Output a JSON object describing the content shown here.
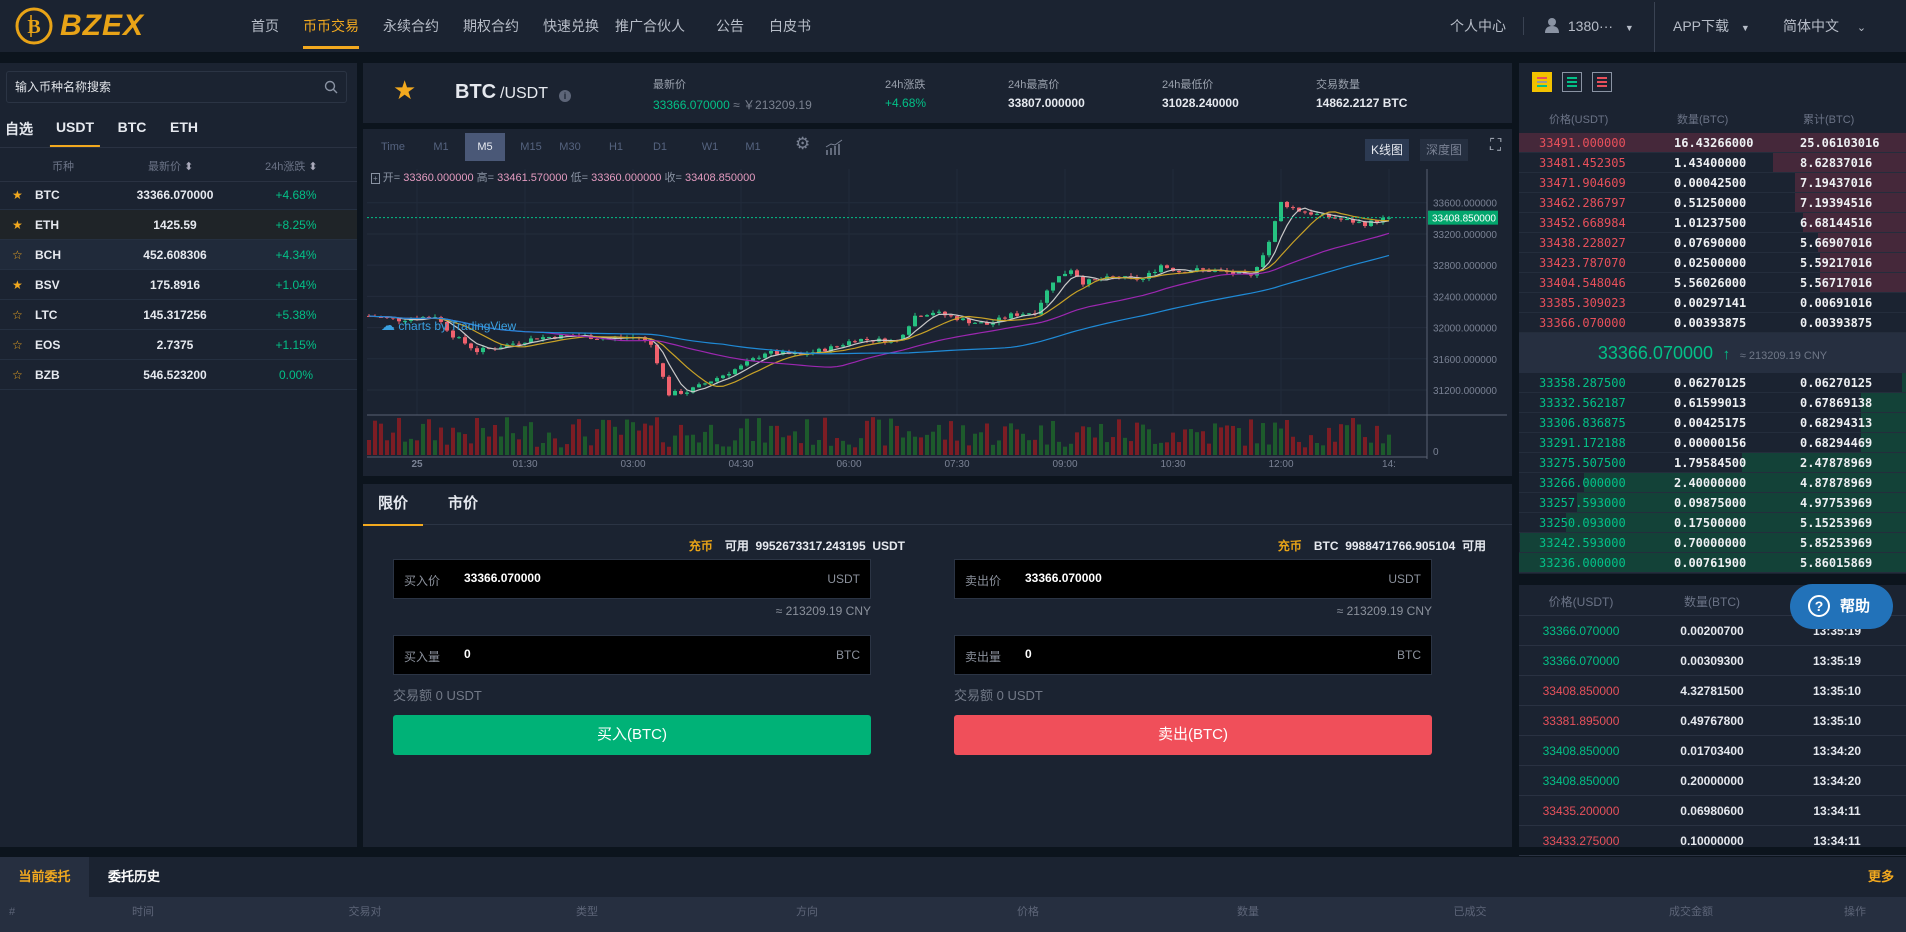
{
  "header": {
    "logo": "BZEX",
    "nav": [
      {
        "label": "首页",
        "active": false
      },
      {
        "label": "币币交易",
        "active": true
      },
      {
        "label": "永续合约",
        "active": false
      },
      {
        "label": "期权合约",
        "active": false
      },
      {
        "label": "快速兑换",
        "active": false
      },
      {
        "label": "推广合伙人",
        "active": false
      },
      {
        "label": "公告",
        "active": false
      },
      {
        "label": "白皮书",
        "active": false
      }
    ],
    "personal_center": "个人中心",
    "user": "1380···",
    "app_download": "APP下载",
    "language": "简体中文"
  },
  "market_list": {
    "search_placeholder": "输入币种名称搜索",
    "tabs": [
      {
        "label": "自选"
      },
      {
        "label": "USDT",
        "active": true
      },
      {
        "label": "BTC"
      },
      {
        "label": "ETH"
      }
    ],
    "columns": {
      "coin": "币种",
      "price": "最新价",
      "change": "24h涨跌"
    },
    "rows": [
      {
        "coin": "BTC",
        "price": "33366.070000",
        "change": "+4.68%",
        "favorite": true
      },
      {
        "coin": "ETH",
        "price": "1425.59",
        "change": "+8.25%",
        "favorite": true
      },
      {
        "coin": "BCH",
        "price": "452.608306",
        "change": "+4.34%",
        "favorite": false
      },
      {
        "coin": "BSV",
        "price": "175.8916",
        "change": "+1.04%",
        "favorite": true
      },
      {
        "coin": "LTC",
        "price": "145.317256",
        "change": "+5.38%",
        "favorite": false
      },
      {
        "coin": "EOS",
        "price": "2.7375",
        "change": "+1.15%",
        "favorite": false
      },
      {
        "coin": "BZB",
        "price": "546.523200",
        "change": "0.00%",
        "favorite": false
      }
    ]
  },
  "ticker": {
    "base": "BTC",
    "quote": "/USDT",
    "last_label": "最新价",
    "last_price": "33366.070000",
    "last_cny": "≈ ￥213209.19",
    "change_label": "24h涨跌",
    "change": "+4.68%",
    "high_label": "24h最高价",
    "high": "33807.000000",
    "low_label": "24h最低价",
    "low": "31028.240000",
    "volume_label": "交易数量",
    "volume": "14862.2127 BTC"
  },
  "chart_toolbar": {
    "intervals": [
      {
        "label": "Time"
      },
      {
        "label": "M1"
      },
      {
        "label": "M5",
        "active": true
      },
      {
        "label": "M15"
      },
      {
        "label": "M30"
      },
      {
        "label": "H1"
      },
      {
        "label": "D1"
      },
      {
        "label": "W1"
      },
      {
        "label": "M1"
      }
    ],
    "kline": "K线图",
    "depth": "深度图"
  },
  "chart_data": {
    "type": "candlestick",
    "interval": "5m",
    "legend": {
      "open_label": "开=",
      "open": "33360.000000",
      "high_label": "高=",
      "high": "33461.570000",
      "low_label": "低=",
      "low": "33360.000000",
      "close_label": "收=",
      "close": "33408.850000"
    },
    "current_price": "33408.850000",
    "y_ticks": [
      "33600.000000",
      "33200.000000",
      "32800.000000",
      "32400.000000",
      "32000.000000",
      "31600.000000",
      "31200.000000"
    ],
    "ylim": [
      30880,
      33840
    ],
    "x_ticks": [
      "25",
      "01:30",
      "03:00",
      "04:30",
      "06:00",
      "07:30",
      "09:00",
      "10:30",
      "12:00",
      "14:"
    ],
    "volume_axis_label": "0",
    "close_trend": [
      [
        "23:20",
        32150
      ],
      [
        "23:45",
        32100
      ],
      [
        "00:15",
        32150
      ],
      [
        "00:30",
        31900
      ],
      [
        "00:50",
        31700
      ],
      [
        "01:10",
        31760
      ],
      [
        "01:40",
        31870
      ],
      [
        "02:10",
        31900
      ],
      [
        "02:40",
        31860
      ],
      [
        "03:05",
        31880
      ],
      [
        "03:15",
        31780
      ],
      [
        "03:30",
        31150
      ],
      [
        "03:45",
        31180
      ],
      [
        "04:05",
        31320
      ],
      [
        "04:30",
        31500
      ],
      [
        "04:50",
        31680
      ],
      [
        "05:20",
        31650
      ],
      [
        "05:50",
        31760
      ],
      [
        "06:05",
        31850
      ],
      [
        "06:40",
        31830
      ],
      [
        "06:55",
        32150
      ],
      [
        "07:10",
        32200
      ],
      [
        "07:40",
        32080
      ],
      [
        "07:55",
        32040
      ],
      [
        "08:15",
        32160
      ],
      [
        "08:35",
        32200
      ],
      [
        "08:50",
        32600
      ],
      [
        "09:05",
        32750
      ],
      [
        "09:15",
        32580
      ],
      [
        "09:40",
        32640
      ],
      [
        "10:05",
        32620
      ],
      [
        "10:20",
        32800
      ],
      [
        "10:35",
        32720
      ],
      [
        "10:50",
        32740
      ],
      [
        "11:10",
        32720
      ],
      [
        "11:35",
        32650
      ],
      [
        "11:50",
        33100
      ],
      [
        "12:00",
        33600
      ],
      [
        "12:15",
        33500
      ],
      [
        "12:35",
        33430
      ],
      [
        "13:10",
        33330
      ],
      [
        "13:30",
        33408
      ]
    ],
    "watermark": "charts by TradingView"
  },
  "order_form": {
    "tabs": [
      {
        "label": "限价",
        "active": true
      },
      {
        "label": "市价"
      }
    ],
    "deposit": "充币",
    "buy": {
      "available_label": "可用",
      "available": "9952673317.243195",
      "available_unit": "USDT",
      "price_label": "买入价",
      "price": "33366.070000",
      "price_unit": "USDT",
      "cny": "≈ 213209.19 CNY",
      "qty_label": "买入量",
      "qty": "0",
      "qty_unit": "BTC",
      "amount": "交易额 0 USDT",
      "button": "买入(BTC)"
    },
    "sell": {
      "available_label": "可用",
      "available": "9988471766.905104",
      "available_unit": "BTC",
      "price_label": "卖出价",
      "price": "33366.070000",
      "price_unit": "USDT",
      "cny": "≈ 213209.19 CNY",
      "qty_label": "卖出量",
      "qty": "0",
      "qty_unit": "BTC",
      "amount": "交易额 0 USDT",
      "button": "卖出(BTC)"
    }
  },
  "order_book": {
    "columns": {
      "price": "价格(USDT)",
      "qty": "数量(BTC)",
      "total": "累计(BTC)"
    },
    "asks": [
      [
        "33491.000000",
        "16.43266000",
        "25.06103016"
      ],
      [
        "33481.452305",
        "1.43400000",
        "8.62837016"
      ],
      [
        "33471.904609",
        "0.00042500",
        "7.19437016"
      ],
      [
        "33462.286797",
        "0.51250000",
        "7.19394516"
      ],
      [
        "33452.668984",
        "1.01237500",
        "6.68144516"
      ],
      [
        "33438.228027",
        "0.07690000",
        "5.66907016"
      ],
      [
        "33423.787070",
        "0.02500000",
        "5.59217016"
      ],
      [
        "33404.548046",
        "5.56026000",
        "5.56717016"
      ],
      [
        "33385.309023",
        "0.00297141",
        "0.00691016"
      ],
      [
        "33366.070000",
        "0.00393875",
        "0.00393875"
      ]
    ],
    "mid_price": "33366.070000",
    "mid_arrow": "↑",
    "mid_cny": "≈ 213209.19 CNY",
    "bids": [
      [
        "33358.287500",
        "0.06270125",
        "0.06270125"
      ],
      [
        "33332.562187",
        "0.61599013",
        "0.67869138"
      ],
      [
        "33306.836875",
        "0.00425175",
        "0.68294313"
      ],
      [
        "33291.172188",
        "0.00000156",
        "0.68294469"
      ],
      [
        "33275.507500",
        "1.79584500",
        "2.47878969"
      ],
      [
        "33266.000000",
        "2.40000000",
        "4.87878969"
      ],
      [
        "33257.593000",
        "0.09875000",
        "4.97753969"
      ],
      [
        "33250.093000",
        "0.17500000",
        "5.15253969"
      ],
      [
        "33242.593000",
        "0.70000000",
        "5.85253969"
      ],
      [
        "33236.000000",
        "0.00761900",
        "5.86015869"
      ]
    ]
  },
  "trade_history": {
    "columns": {
      "price": "价格(USDT)",
      "qty": "数量(BTC)"
    },
    "rows": [
      {
        "price": "33366.070000",
        "qty": "0.00200700",
        "time": "13:35:19",
        "side": "buy"
      },
      {
        "price": "33366.070000",
        "qty": "0.00309300",
        "time": "13:35:19",
        "side": "buy"
      },
      {
        "price": "33408.850000",
        "qty": "4.32781500",
        "time": "13:35:10",
        "side": "sell"
      },
      {
        "price": "33381.895000",
        "qty": "0.49767800",
        "time": "13:35:10",
        "side": "sell"
      },
      {
        "price": "33408.850000",
        "qty": "0.01703400",
        "time": "13:34:20",
        "side": "buy"
      },
      {
        "price": "33408.850000",
        "qty": "0.20000000",
        "time": "13:34:20",
        "side": "buy"
      },
      {
        "price": "33435.200000",
        "qty": "0.06980600",
        "time": "13:34:11",
        "side": "sell"
      },
      {
        "price": "33433.275000",
        "qty": "0.10000000",
        "time": "13:34:11",
        "side": "sell"
      }
    ]
  },
  "help": "帮助",
  "orders": {
    "tabs": [
      {
        "label": "当前委托",
        "active": true
      },
      {
        "label": "委托历史"
      }
    ],
    "more": "更多",
    "columns": [
      "#",
      "时间",
      "交易对",
      "类型",
      "方向",
      "价格",
      "数量",
      "已成交",
      "成交金额",
      "操作"
    ]
  },
  "colors": {
    "accent": "#f2a91f",
    "up": "#03c087",
    "down": "#e8505b",
    "buy_button": "#00b277",
    "sell_button": "#f04f5a",
    "help": "#2272b9"
  }
}
